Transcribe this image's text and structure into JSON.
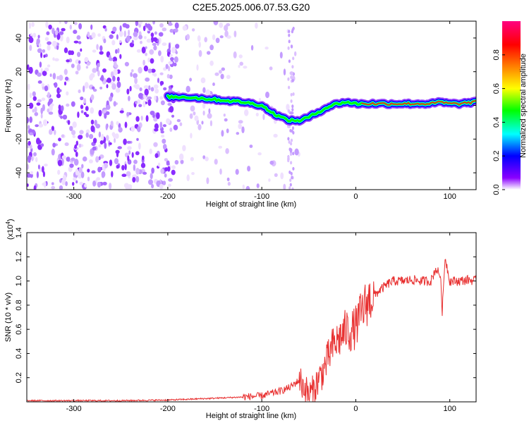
{
  "title": "C2E5.2025.006.07.53.G20",
  "colors": {
    "snr_line": "#e83030",
    "ridge_core": "#ff2020",
    "colorbar": [
      "#ffffff",
      "#8a00ff",
      "#0000ff",
      "#00ffff",
      "#00ff00",
      "#ffff00",
      "#ff8000",
      "#ff0000",
      "#ff0080"
    ]
  },
  "chart_data": [
    {
      "type": "heatmap",
      "xlabel": "Height of straight line (km)",
      "ylabel": "Frequency (Hz)",
      "xlim": [
        -350,
        128
      ],
      "ylim": [
        -50,
        50
      ],
      "xticks": [
        -300,
        -200,
        -100,
        0,
        100
      ],
      "yticks": [
        -40,
        -20,
        0,
        20,
        40
      ],
      "colorbar": {
        "label": "Normalized spectral amplitude",
        "range": [
          0,
          1
        ],
        "ticks": [
          0.0,
          0.2,
          0.4,
          0.6,
          0.8
        ]
      },
      "ridge": {
        "x": [
          -200,
          -180,
          -160,
          -140,
          -120,
          -100,
          -90,
          -80,
          -70,
          -60,
          -50,
          -40,
          -30,
          -20,
          -10,
          0,
          20,
          40,
          60,
          80,
          90,
          100,
          110,
          128
        ],
        "frequency": [
          5,
          5,
          4,
          3,
          2,
          0,
          -4,
          -7,
          -9,
          -9,
          -7,
          -4,
          -1,
          1,
          2,
          1,
          1,
          1,
          1,
          1,
          2,
          1,
          1,
          2
        ]
      }
    },
    {
      "type": "line",
      "xlabel": "Height of straight line (km)",
      "ylabel": "SNR (10 * v/v)",
      "y_multiplier": "(x10",
      "y_multiplier_exp": "4",
      "xlim": [
        -350,
        128
      ],
      "ylim": [
        0,
        1.4
      ],
      "xticks": [
        -300,
        -200,
        -100,
        0,
        100
      ],
      "yticks": [
        0.2,
        0.4,
        0.6,
        0.8,
        1.0,
        1.2,
        1.4
      ],
      "series": [
        {
          "x": [
            -350,
            -300,
            -250,
            -200,
            -150,
            -120,
            -100,
            -90,
            -80,
            -70,
            -60,
            -55,
            -50,
            -45,
            -40,
            -35,
            -30,
            -25,
            -20,
            -15,
            -10,
            -5,
            0,
            5,
            10,
            15,
            20,
            25,
            30,
            35,
            40,
            50,
            60,
            70,
            80,
            85,
            90,
            92,
            95,
            100,
            110,
            120,
            128
          ],
          "y": [
            0.01,
            0.01,
            0.01,
            0.015,
            0.03,
            0.04,
            0.05,
            0.07,
            0.09,
            0.12,
            0.18,
            0.12,
            0.06,
            0.1,
            0.18,
            0.25,
            0.35,
            0.45,
            0.5,
            0.55,
            0.6,
            0.58,
            0.62,
            0.72,
            0.8,
            0.85,
            0.88,
            0.92,
            0.95,
            0.98,
            1.0,
            1.0,
            1.01,
            1.0,
            1.0,
            1.1,
            1.05,
            0.75,
            1.2,
            1.0,
            1.0,
            1.01,
            1.0
          ]
        }
      ]
    }
  ]
}
